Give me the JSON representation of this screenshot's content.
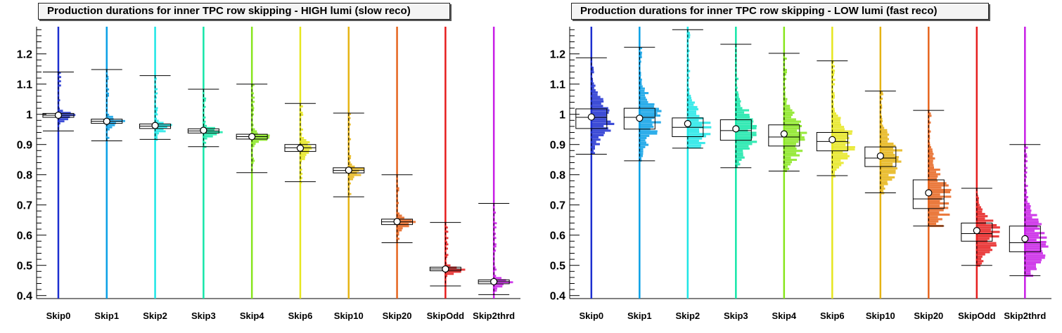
{
  "chart_data": [
    {
      "type": "box",
      "title": "Production durations for inner TPC row skipping - HIGH lumi (slow reco)",
      "categories": [
        "Skip0",
        "Skip1",
        "Skip2",
        "Skip3",
        "Skip4",
        "Skip6",
        "Skip10",
        "Skip20",
        "SkipOdd",
        "Skip2thrd"
      ],
      "ylim": [
        0.39,
        1.29
      ],
      "yticks": [
        "0.4",
        "0.5",
        "0.6",
        "0.7",
        "0.8",
        "0.9",
        "1",
        "1.1",
        "1.2"
      ],
      "series": [
        {
          "name": "Skip0",
          "whisker_low": 0.945,
          "q1": 0.99,
          "median": 0.997,
          "q3": 1.003,
          "mean": 0.997,
          "whisker_high": 1.14
        },
        {
          "name": "Skip1",
          "whisker_low": 0.912,
          "q1": 0.97,
          "median": 0.977,
          "q3": 0.984,
          "mean": 0.977,
          "whisker_high": 1.148
        },
        {
          "name": "Skip2",
          "whisker_low": 0.917,
          "q1": 0.953,
          "median": 0.961,
          "q3": 0.968,
          "mean": 0.963,
          "whisker_high": 1.128
        },
        {
          "name": "Skip3",
          "whisker_low": 0.893,
          "q1": 0.938,
          "median": 0.945,
          "q3": 0.952,
          "mean": 0.947,
          "whisker_high": 1.083
        },
        {
          "name": "Skip4",
          "whisker_low": 0.807,
          "q1": 0.918,
          "median": 0.926,
          "q3": 0.934,
          "mean": 0.926,
          "whisker_high": 1.1
        },
        {
          "name": "Skip6",
          "whisker_low": 0.777,
          "q1": 0.877,
          "median": 0.889,
          "q3": 0.9,
          "mean": 0.888,
          "whisker_high": 1.036
        },
        {
          "name": "Skip10",
          "whisker_low": 0.727,
          "q1": 0.806,
          "median": 0.814,
          "q3": 0.823,
          "mean": 0.815,
          "whisker_high": 1.004
        },
        {
          "name": "Skip20",
          "whisker_low": 0.575,
          "q1": 0.635,
          "median": 0.644,
          "q3": 0.653,
          "mean": 0.645,
          "whisker_high": 0.8
        },
        {
          "name": "SkipOdd",
          "whisker_low": 0.432,
          "q1": 0.482,
          "median": 0.488,
          "q3": 0.494,
          "mean": 0.488,
          "whisker_high": 0.642
        },
        {
          "name": "Skip2thrd",
          "whisker_low": 0.403,
          "q1": 0.439,
          "median": 0.446,
          "q3": 0.452,
          "mean": 0.446,
          "whisker_high": 0.705
        }
      ]
    },
    {
      "type": "box",
      "title": "Production durations for inner TPC row skipping - LOW lumi (fast reco)",
      "categories": [
        "Skip0",
        "Skip1",
        "Skip2",
        "Skip3",
        "Skip4",
        "Skip6",
        "Skip10",
        "Skip20",
        "SkipOdd",
        "Skip2thrd"
      ],
      "ylim": [
        0.39,
        1.29
      ],
      "yticks": [
        "0.4",
        "0.5",
        "0.6",
        "0.7",
        "0.8",
        "0.9",
        "1",
        "1.1",
        "1.2"
      ],
      "series": [
        {
          "name": "Skip0",
          "whisker_low": 0.868,
          "q1": 0.953,
          "median": 0.99,
          "q3": 1.018,
          "mean": 0.991,
          "whisker_high": 1.187
        },
        {
          "name": "Skip1",
          "whisker_low": 0.846,
          "q1": 0.951,
          "median": 0.99,
          "q3": 1.02,
          "mean": 0.987,
          "whisker_high": 1.222
        },
        {
          "name": "Skip2",
          "whisker_low": 0.888,
          "q1": 0.926,
          "median": 0.957,
          "q3": 0.988,
          "mean": 0.969,
          "whisker_high": 1.28
        },
        {
          "name": "Skip3",
          "whisker_low": 0.823,
          "q1": 0.914,
          "median": 0.946,
          "q3": 0.982,
          "mean": 0.952,
          "whisker_high": 1.232
        },
        {
          "name": "Skip4",
          "whisker_low": 0.812,
          "q1": 0.895,
          "median": 0.925,
          "q3": 0.965,
          "mean": 0.935,
          "whisker_high": 1.202
        },
        {
          "name": "Skip6",
          "whisker_low": 0.797,
          "q1": 0.879,
          "median": 0.91,
          "q3": 0.94,
          "mean": 0.916,
          "whisker_high": 1.177
        },
        {
          "name": "Skip10",
          "whisker_low": 0.74,
          "q1": 0.827,
          "median": 0.855,
          "q3": 0.892,
          "mean": 0.862,
          "whisker_high": 1.077
        },
        {
          "name": "Skip20",
          "whisker_low": 0.63,
          "q1": 0.688,
          "median": 0.72,
          "q3": 0.783,
          "mean": 0.74,
          "whisker_high": 1.013
        },
        {
          "name": "SkipOdd",
          "whisker_low": 0.5,
          "q1": 0.58,
          "median": 0.605,
          "q3": 0.64,
          "mean": 0.615,
          "whisker_high": 0.755
        },
        {
          "name": "Skip2thrd",
          "whisker_low": 0.466,
          "q1": 0.545,
          "median": 0.575,
          "q3": 0.63,
          "mean": 0.588,
          "whisker_high": 0.9
        }
      ]
    }
  ],
  "colors": [
    "#1d2fd0",
    "#0aa0e6",
    "#1ee6e6",
    "#14e6a8",
    "#88e61e",
    "#e6e61e",
    "#e6b414",
    "#e6641e",
    "#e61e1e",
    "#c81ee6"
  ]
}
